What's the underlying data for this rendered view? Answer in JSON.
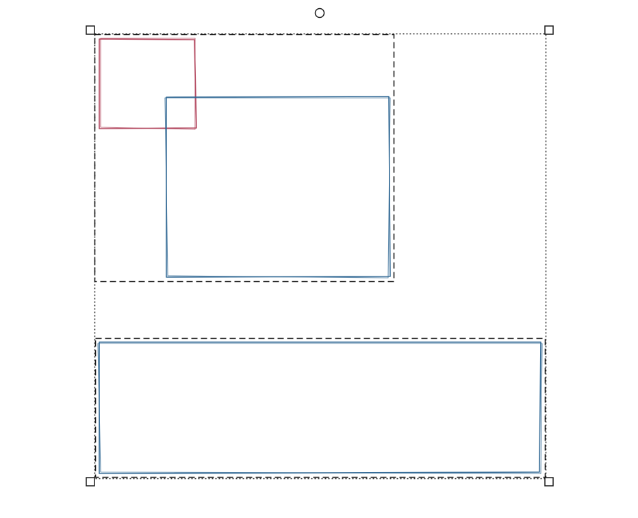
{
  "canvas": {
    "background_color": "#ffffff"
  },
  "selection": {
    "outline_color": "#1a1a1a",
    "handles": [
      "resize-handle-top-left",
      "resize-handle-top-right",
      "resize-handle-bottom-left",
      "resize-handle-bottom-right",
      "rotation-handle"
    ]
  },
  "shapes": [
    {
      "kind": "rectangle",
      "style": "hand-drawn",
      "stroke_color": "#b0415a"
    },
    {
      "kind": "rectangle",
      "style": "hand-drawn",
      "stroke_color": "#2f6793"
    },
    {
      "kind": "rectangle",
      "style": "hand-drawn",
      "stroke_color": "#2f6793"
    }
  ]
}
